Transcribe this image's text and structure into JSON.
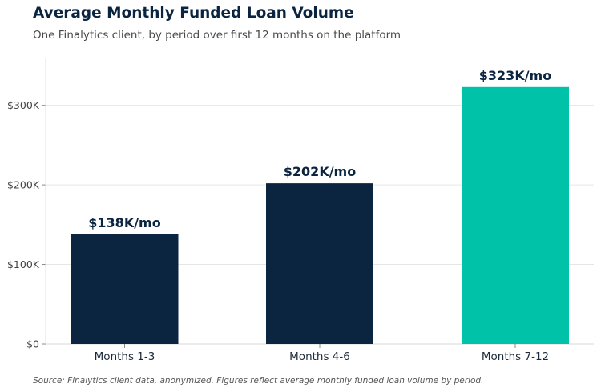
{
  "chart_data": {
    "type": "bar",
    "title": "Average Monthly Funded Loan Volume",
    "subtitle": "One Finalytics client, by period over first 12 months on the platform",
    "categories": [
      "Months 1-3",
      "Months 4-6",
      "Months 7-12"
    ],
    "values": [
      138,
      202,
      323
    ],
    "data_labels": [
      "$138K/mo",
      "$202K/mo",
      "$323K/mo"
    ],
    "colors": [
      "#0b2540",
      "#0b2540",
      "#00c2a8"
    ],
    "yticks": [
      0,
      100,
      200,
      300
    ],
    "ytick_labels": [
      "$0",
      "$100K",
      "$200K",
      "$300K"
    ],
    "ylim": [
      0,
      360
    ],
    "grid": true,
    "xlabel": "",
    "ylabel": ""
  },
  "footer": {
    "source": "Source: Finalytics client data, anonymized. Figures reflect average monthly funded loan volume by period."
  }
}
